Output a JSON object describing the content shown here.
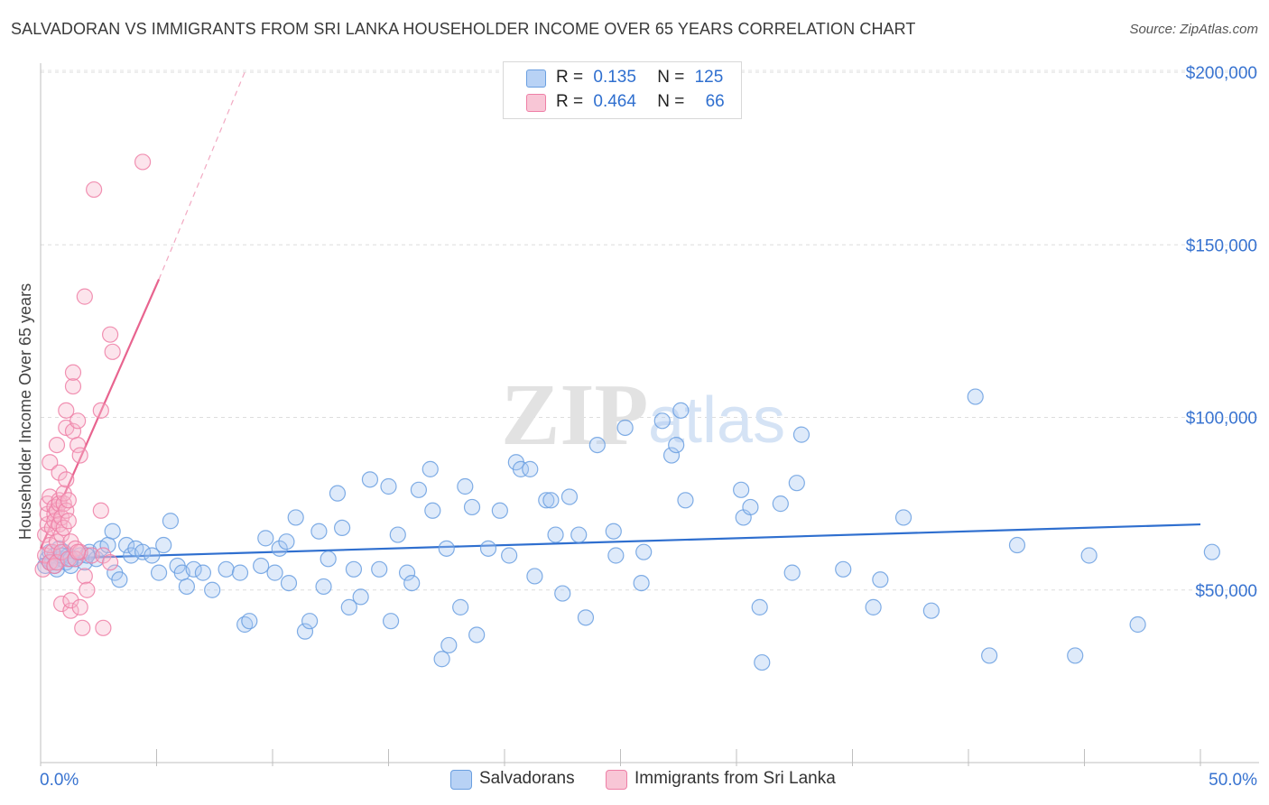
{
  "title": "SALVADORAN VS IMMIGRANTS FROM SRI LANKA HOUSEHOLDER INCOME OVER 65 YEARS CORRELATION CHART",
  "source": "Source: ZipAtlas.com",
  "watermark": {
    "zip": "ZIP",
    "atlas": "atlas"
  },
  "legend": {
    "rows": [
      {
        "r_label": "R =",
        "r_value": "0.135",
        "n_label": "N =",
        "n_value": "125"
      },
      {
        "r_label": "R =",
        "r_value": "0.464",
        "n_label": "N =",
        "n_value": "66"
      }
    ]
  },
  "bottom_legend": {
    "series1": "Salvadorans",
    "series2": "Immigrants from Sri Lanka"
  },
  "colors": {
    "blue": "#6a9fe0",
    "blue_fill": "#a9c8f2",
    "blue_line": "#2f6fcf",
    "pink": "#ee7fa6",
    "pink_fill": "#f6b9cd",
    "pink_line": "#e8648f",
    "axis_label": "#3873d0"
  },
  "chart_data": {
    "type": "scatter",
    "title": "SALVADORAN VS IMMIGRANTS FROM SRI LANKA HOUSEHOLDER INCOME OVER 65 YEARS CORRELATION CHART",
    "xlabel": "",
    "ylabel": "Householder Income Over 65 years",
    "xlim": [
      0,
      50
    ],
    "ylim": [
      0,
      210000
    ],
    "x_tick_labels": [
      "0.0%",
      "50.0%"
    ],
    "y_ticks": [
      50000,
      100000,
      150000,
      200000
    ],
    "y_tick_labels": [
      "$50,000",
      "$100,000",
      "$150,000",
      "$200,000"
    ],
    "grid": true,
    "series": [
      {
        "name": "Salvadorans",
        "R": 0.135,
        "N": 125,
        "trend": {
          "x": [
            0,
            50
          ],
          "y": [
            59000,
            69000
          ]
        },
        "points": [
          [
            0.2,
            57000
          ],
          [
            0.3,
            59000
          ],
          [
            0.4,
            61000
          ],
          [
            0.5,
            58000
          ],
          [
            0.6,
            60000
          ],
          [
            0.7,
            56000
          ],
          [
            0.8,
            62000
          ],
          [
            0.9,
            59000
          ],
          [
            1.0,
            61000
          ],
          [
            1.1,
            58000
          ],
          [
            1.2,
            60000
          ],
          [
            1.3,
            57000
          ],
          [
            1.5,
            59000
          ],
          [
            1.7,
            60000
          ],
          [
            1.9,
            58000
          ],
          [
            2.1,
            61000
          ],
          [
            2.4,
            59000
          ],
          [
            2.6,
            62000
          ],
          [
            2.9,
            63000
          ],
          [
            3.1,
            67000
          ],
          [
            3.2,
            55000
          ],
          [
            3.4,
            53000
          ],
          [
            3.7,
            63000
          ],
          [
            3.9,
            60000
          ],
          [
            4.1,
            62000
          ],
          [
            4.4,
            61000
          ],
          [
            4.8,
            60000
          ],
          [
            5.1,
            55000
          ],
          [
            5.3,
            63000
          ],
          [
            5.6,
            70000
          ],
          [
            5.9,
            57000
          ],
          [
            6.1,
            55000
          ],
          [
            6.3,
            51000
          ],
          [
            6.6,
            56000
          ],
          [
            7.0,
            55000
          ],
          [
            7.4,
            50000
          ],
          [
            8.0,
            56000
          ],
          [
            8.6,
            55000
          ],
          [
            8.8,
            40000
          ],
          [
            9.0,
            41000
          ],
          [
            9.5,
            57000
          ],
          [
            9.7,
            65000
          ],
          [
            10.1,
            55000
          ],
          [
            10.3,
            62000
          ],
          [
            10.6,
            64000
          ],
          [
            10.7,
            52000
          ],
          [
            11.0,
            71000
          ],
          [
            11.4,
            38000
          ],
          [
            11.6,
            41000
          ],
          [
            12.0,
            67000
          ],
          [
            12.2,
            51000
          ],
          [
            12.4,
            59000
          ],
          [
            12.8,
            78000
          ],
          [
            13.0,
            68000
          ],
          [
            13.3,
            45000
          ],
          [
            13.5,
            56000
          ],
          [
            13.8,
            48000
          ],
          [
            14.2,
            82000
          ],
          [
            14.6,
            56000
          ],
          [
            15.0,
            80000
          ],
          [
            15.1,
            41000
          ],
          [
            15.4,
            66000
          ],
          [
            15.8,
            55000
          ],
          [
            16.0,
            52000
          ],
          [
            16.3,
            79000
          ],
          [
            16.8,
            85000
          ],
          [
            16.9,
            73000
          ],
          [
            17.3,
            30000
          ],
          [
            17.5,
            62000
          ],
          [
            17.6,
            34000
          ],
          [
            18.1,
            45000
          ],
          [
            18.3,
            80000
          ],
          [
            18.6,
            74000
          ],
          [
            18.8,
            37000
          ],
          [
            19.3,
            62000
          ],
          [
            19.8,
            73000
          ],
          [
            20.2,
            60000
          ],
          [
            20.5,
            87000
          ],
          [
            20.7,
            85000
          ],
          [
            21.1,
            85000
          ],
          [
            21.3,
            54000
          ],
          [
            21.8,
            76000
          ],
          [
            22.0,
            76000
          ],
          [
            22.2,
            66000
          ],
          [
            22.5,
            49000
          ],
          [
            22.8,
            77000
          ],
          [
            23.2,
            66000
          ],
          [
            23.5,
            42000
          ],
          [
            24.0,
            92000
          ],
          [
            24.7,
            67000
          ],
          [
            24.8,
            60000
          ],
          [
            25.2,
            97000
          ],
          [
            25.9,
            52000
          ],
          [
            26.0,
            61000
          ],
          [
            26.8,
            99000
          ],
          [
            27.2,
            89000
          ],
          [
            27.4,
            92000
          ],
          [
            27.6,
            102000
          ],
          [
            27.8,
            76000
          ],
          [
            30.2,
            79000
          ],
          [
            30.3,
            71000
          ],
          [
            30.6,
            74000
          ],
          [
            31.0,
            45000
          ],
          [
            31.1,
            29000
          ],
          [
            31.9,
            75000
          ],
          [
            32.4,
            55000
          ],
          [
            32.6,
            81000
          ],
          [
            32.8,
            95000
          ],
          [
            34.6,
            56000
          ],
          [
            35.9,
            45000
          ],
          [
            36.2,
            53000
          ],
          [
            37.2,
            71000
          ],
          [
            38.4,
            44000
          ],
          [
            40.3,
            106000
          ],
          [
            40.9,
            31000
          ],
          [
            42.1,
            63000
          ],
          [
            44.6,
            31000
          ],
          [
            45.2,
            60000
          ],
          [
            47.3,
            40000
          ],
          [
            50.5,
            61000
          ],
          [
            0.4,
            58000
          ],
          [
            0.6,
            57000
          ],
          [
            0.9,
            60000
          ],
          [
            1.3,
            59000
          ],
          [
            2.0,
            60000
          ]
        ]
      },
      {
        "name": "Immigrants from Sri Lanka",
        "R": 0.464,
        "N": 66,
        "trend": {
          "x": [
            0,
            5.1
          ],
          "y": [
            62000,
            140000
          ],
          "dashed_x": [
            5.1,
            8.8
          ],
          "dashed_y": [
            140000,
            200000
          ]
        },
        "points": [
          [
            0.1,
            56000
          ],
          [
            0.2,
            60000
          ],
          [
            0.2,
            66000
          ],
          [
            0.3,
            69000
          ],
          [
            0.3,
            72000
          ],
          [
            0.3,
            75000
          ],
          [
            0.4,
            58000
          ],
          [
            0.4,
            63000
          ],
          [
            0.4,
            77000
          ],
          [
            0.4,
            87000
          ],
          [
            0.5,
            61000
          ],
          [
            0.5,
            68000
          ],
          [
            0.6,
            72000
          ],
          [
            0.6,
            74000
          ],
          [
            0.6,
            57000
          ],
          [
            0.6,
            70000
          ],
          [
            0.7,
            92000
          ],
          [
            0.7,
            73000
          ],
          [
            0.7,
            64000
          ],
          [
            0.7,
            58000
          ],
          [
            0.8,
            76000
          ],
          [
            0.8,
            84000
          ],
          [
            0.8,
            69000
          ],
          [
            0.8,
            75000
          ],
          [
            0.9,
            71000
          ],
          [
            0.9,
            66000
          ],
          [
            0.9,
            61000
          ],
          [
            0.9,
            46000
          ],
          [
            1.0,
            75000
          ],
          [
            1.0,
            78000
          ],
          [
            1.0,
            68000
          ],
          [
            1.1,
            97000
          ],
          [
            1.1,
            82000
          ],
          [
            1.1,
            73000
          ],
          [
            1.1,
            102000
          ],
          [
            1.2,
            70000
          ],
          [
            1.2,
            76000
          ],
          [
            1.2,
            59000
          ],
          [
            1.3,
            44000
          ],
          [
            1.3,
            47000
          ],
          [
            1.3,
            64000
          ],
          [
            1.4,
            109000
          ],
          [
            1.4,
            113000
          ],
          [
            1.4,
            96000
          ],
          [
            1.5,
            62000
          ],
          [
            1.5,
            59000
          ],
          [
            1.6,
            99000
          ],
          [
            1.6,
            92000
          ],
          [
            1.7,
            89000
          ],
          [
            1.7,
            61000
          ],
          [
            1.7,
            45000
          ],
          [
            1.8,
            39000
          ],
          [
            1.9,
            135000
          ],
          [
            1.9,
            54000
          ],
          [
            2.0,
            50000
          ],
          [
            2.2,
            60000
          ],
          [
            2.3,
            166000
          ],
          [
            2.6,
            102000
          ],
          [
            2.6,
            73000
          ],
          [
            2.7,
            39000
          ],
          [
            2.7,
            60000
          ],
          [
            3.0,
            124000
          ],
          [
            3.0,
            58000
          ],
          [
            3.1,
            119000
          ],
          [
            4.4,
            174000
          ],
          [
            1.6,
            61000
          ]
        ]
      }
    ]
  }
}
